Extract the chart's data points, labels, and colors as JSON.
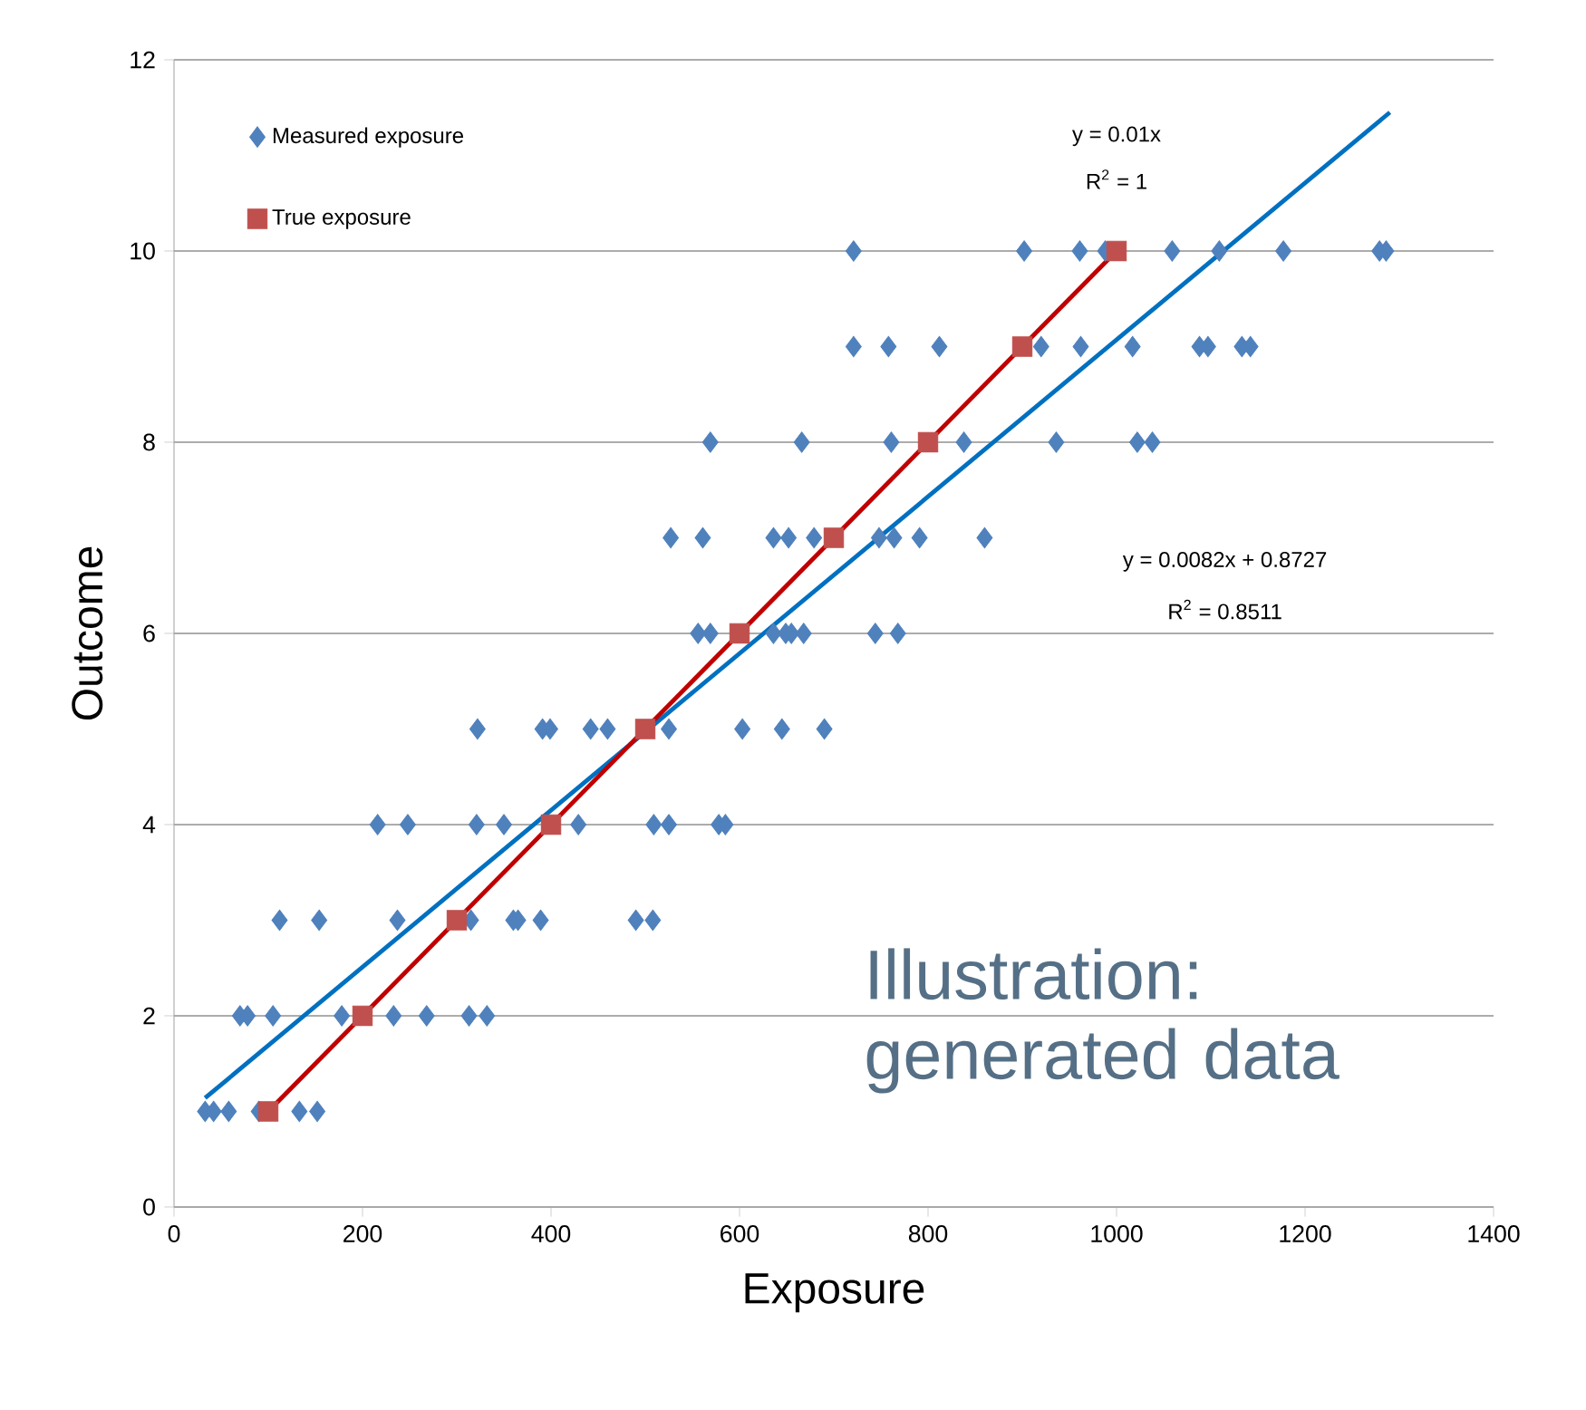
{
  "chart_data": {
    "type": "scatter",
    "xlabel": "Exposure",
    "ylabel": "Outcome",
    "xlim": [
      0,
      1400
    ],
    "ylim": [
      0,
      12
    ],
    "xticks": [
      0,
      200,
      400,
      600,
      800,
      1000,
      1200,
      1400
    ],
    "yticks": [
      0,
      2,
      4,
      6,
      8,
      10,
      12
    ],
    "grid": "y",
    "legend": "top left",
    "series": [
      {
        "name": "Measured exposure",
        "marker": "diamond",
        "color": "#4f81bd",
        "x": [
          33,
          42,
          58,
          90,
          133,
          152,
          70,
          78,
          105,
          178,
          233,
          268,
          313,
          332,
          112,
          154,
          237,
          315,
          360,
          365,
          389,
          490,
          508,
          216,
          248,
          321,
          350,
          429,
          509,
          525,
          578,
          585,
          322,
          391,
          399,
          442,
          460,
          525,
          603,
          645,
          690,
          556,
          569,
          636,
          649,
          655,
          668,
          744,
          768,
          527,
          561,
          636,
          652,
          679,
          748,
          764,
          791,
          860,
          569,
          666,
          761,
          838,
          936,
          1022,
          1038,
          721,
          758,
          812,
          920,
          962,
          1017,
          1088,
          1097,
          1133,
          1142,
          721,
          902,
          961,
          988,
          1059,
          1109,
          1177,
          1279,
          1286
        ],
        "values": [
          1,
          1,
          1,
          1,
          1,
          1,
          2,
          2,
          2,
          2,
          2,
          2,
          2,
          2,
          3,
          3,
          3,
          3,
          3,
          3,
          3,
          3,
          3,
          4,
          4,
          4,
          4,
          4,
          4,
          4,
          4,
          4,
          5,
          5,
          5,
          5,
          5,
          5,
          5,
          5,
          5,
          6,
          6,
          6,
          6,
          6,
          6,
          6,
          6,
          7,
          7,
          7,
          7,
          7,
          7,
          7,
          7,
          7,
          8,
          8,
          8,
          8,
          8,
          8,
          8,
          9,
          9,
          9,
          9,
          9,
          9,
          9,
          9,
          9,
          9,
          10,
          10,
          10,
          10,
          10,
          10,
          10,
          10,
          10
        ]
      },
      {
        "name": "True exposure",
        "marker": "square",
        "color": "#c0504d",
        "x": [
          100,
          200,
          300,
          400,
          500,
          600,
          700,
          800,
          900,
          1000
        ],
        "values": [
          1,
          2,
          3,
          4,
          5,
          6,
          7,
          8,
          9,
          10
        ]
      },
      {
        "type": "line",
        "marker": "none",
        "color": "#0070c0",
        "x": [
          33,
          1290
        ],
        "values": [
          1.14,
          11.45
        ]
      },
      {
        "type": "line",
        "marker": "none",
        "color": "#c00000",
        "x": [
          100,
          1000
        ],
        "values": [
          1,
          10
        ]
      }
    ],
    "annotations": [
      "y = 0.01x",
      "R$^{2}$ = 1",
      "y = 0.0082x + 0.8727",
      "R$^{2}$ = 0.8511",
      "Illustration: generated data"
    ]
  }
}
